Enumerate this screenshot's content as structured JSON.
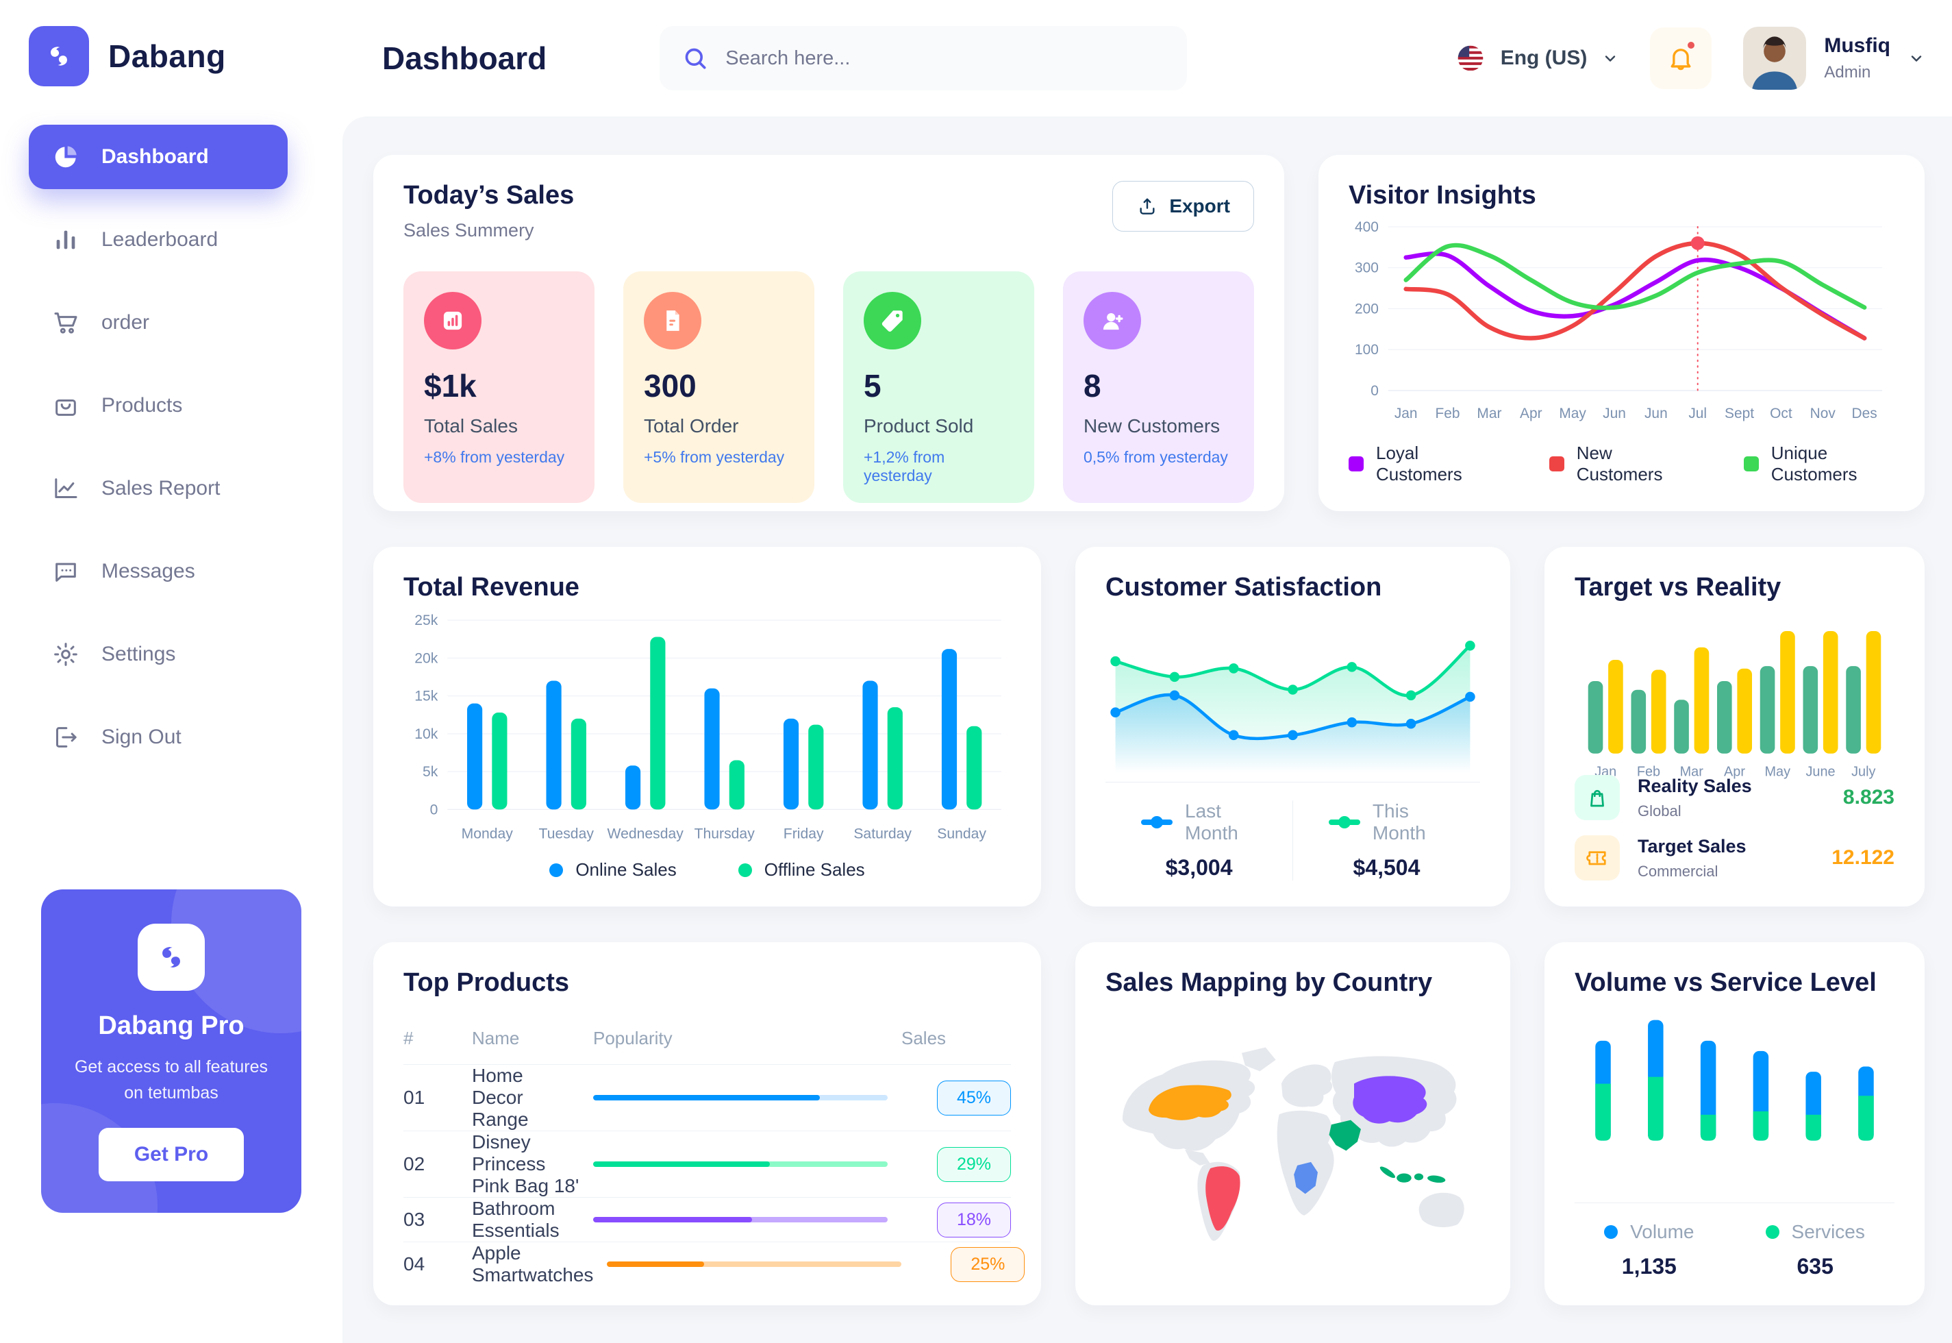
{
  "app": {
    "brand": "Dabang",
    "accent": "#5D5FEF"
  },
  "header": {
    "title": "Dashboard",
    "search_placeholder": "Search here...",
    "language": "Eng (US)",
    "notification_dot": true,
    "user": {
      "name": "Musfiq",
      "role": "Admin"
    }
  },
  "sidebar": {
    "items": [
      {
        "label": "Dashboard",
        "icon": "pie-chart-icon",
        "active": true
      },
      {
        "label": "Leaderboard",
        "icon": "bar-chart-icon",
        "active": false
      },
      {
        "label": "order",
        "icon": "cart-icon",
        "active": false
      },
      {
        "label": "Products",
        "icon": "bag-icon",
        "active": false
      },
      {
        "label": "Sales Report",
        "icon": "line-chart-icon",
        "active": false
      },
      {
        "label": "Messages",
        "icon": "message-icon",
        "active": false
      },
      {
        "label": "Settings",
        "icon": "gear-icon",
        "active": false
      },
      {
        "label": "Sign Out",
        "icon": "sign-out-icon",
        "active": false
      }
    ],
    "pro_card": {
      "title": "Dabang Pro",
      "subtitle": "Get access to all features on tetumbas",
      "button": "Get Pro"
    }
  },
  "todays_sales": {
    "title": "Today’s Sales",
    "subtitle": "Sales Summery",
    "export_label": "Export",
    "cards": [
      {
        "value": "$1k",
        "label": "Total Sales",
        "delta": "+8% from yesterday",
        "bg": "#FFE2E5",
        "circle": "#FA5A7D",
        "icon": "sales-chart-icon"
      },
      {
        "value": "300",
        "label": "Total Order",
        "delta": "+5% from yesterday",
        "bg": "#FFF4DE",
        "circle": "#FF947A",
        "icon": "order-file-icon"
      },
      {
        "value": "5",
        "label": "Product Sold",
        "delta": "+1,2% from yesterday",
        "bg": "#DCFCE7",
        "circle": "#3CD856",
        "icon": "tag-icon"
      },
      {
        "value": "8",
        "label": "New Customers",
        "delta": "0,5% from yesterday",
        "bg": "#F3E8FF",
        "circle": "#BF83FF",
        "icon": "new-customer-icon"
      }
    ]
  },
  "chart_data": [
    {
      "type": "line",
      "title": "Visitor Insights",
      "x": [
        "Jan",
        "Feb",
        "Mar",
        "Apr",
        "May",
        "Jun",
        "Jun",
        "Jul",
        "Sept",
        "Oct",
        "Nov",
        "Des"
      ],
      "ylim": [
        0,
        400
      ],
      "yticks": [
        0,
        100,
        200,
        300,
        400
      ],
      "grid": true,
      "legend_position": "bottom",
      "marker": {
        "x_index": 7,
        "series": "New Customers",
        "color": "#F64E60"
      },
      "series": [
        {
          "name": "Loyal Customers",
          "color": "#A700FF",
          "values": [
            325,
            330,
            255,
            195,
            182,
            210,
            265,
            318,
            300,
            250,
            188,
            128
          ]
        },
        {
          "name": "New Customers",
          "color": "#EF4444",
          "values": [
            248,
            235,
            155,
            128,
            158,
            240,
            328,
            360,
            332,
            252,
            185,
            128
          ]
        },
        {
          "name": "Unique Customers",
          "color": "#3CD856",
          "values": [
            270,
            352,
            330,
            270,
            215,
            203,
            232,
            288,
            310,
            315,
            258,
            203
          ]
        }
      ]
    },
    {
      "type": "bar",
      "title": "Total Revenue",
      "categories": [
        "Monday",
        "Tuesday",
        "Wednesday",
        "Thursday",
        "Friday",
        "Saturday",
        "Sunday"
      ],
      "ylim": [
        0,
        25000
      ],
      "yticks": [
        0,
        5000,
        10000,
        15000,
        20000,
        25000
      ],
      "ytick_labels": [
        "0",
        "5k",
        "10k",
        "15k",
        "20k",
        "25k"
      ],
      "grid": true,
      "legend_position": "bottom",
      "series": [
        {
          "name": "Online Sales",
          "color": "#0095FF",
          "values": [
            14000,
            17000,
            5800,
            16000,
            12000,
            17000,
            21200
          ]
        },
        {
          "name": "Offline Sales",
          "color": "#00E096",
          "values": [
            12800,
            12000,
            22800,
            6500,
            11200,
            13500,
            11000
          ]
        }
      ]
    },
    {
      "type": "area",
      "title": "Customer Satisfaction",
      "x": [
        1,
        2,
        3,
        4,
        5,
        6,
        7
      ],
      "ylim": [
        0,
        110
      ],
      "grid": false,
      "legend_position": "bottom",
      "series": [
        {
          "name": "Last Month",
          "color": "#0095FF",
          "total": "$3,004",
          "values": [
            46,
            58,
            30,
            30,
            39,
            38,
            57
          ]
        },
        {
          "name": "This Month",
          "color": "#00E096",
          "total": "$4,504",
          "values": [
            82,
            71,
            77,
            62,
            78,
            58,
            93
          ]
        }
      ]
    },
    {
      "type": "bar",
      "title": "Target vs Reality",
      "categories": [
        "Jan",
        "Feb",
        "Mar",
        "Apr",
        "May",
        "June",
        "July"
      ],
      "ylim": [
        0,
        110
      ],
      "grid": false,
      "legend_position": "bottom-rows",
      "series": [
        {
          "name": "Reality Sales",
          "subtitle": "Global",
          "color": "#4AB58E",
          "icon": "bag-green-icon",
          "icon_bg": "#E2FFF3",
          "value_label": "8.823",
          "value_color": "#27AE60",
          "values": [
            58,
            51,
            43,
            58,
            70,
            70,
            70
          ]
        },
        {
          "name": "Target Sales",
          "subtitle": "Commercial",
          "color": "#FFCF00",
          "icon": "ticket-orange-icon",
          "icon_bg": "#FFF4DE",
          "value_label": "12.122",
          "value_color": "#FFA412",
          "values": [
            75,
            67,
            85,
            68,
            98,
            98,
            98
          ]
        }
      ]
    },
    {
      "type": "stacked-bar",
      "title": "Volume vs Service Level",
      "categories": [
        "1",
        "2",
        "3",
        "4",
        "5",
        "6"
      ],
      "ylim": [
        0,
        75
      ],
      "grid": false,
      "legend_position": "bottom",
      "series": [
        {
          "name": "Volume",
          "color": "#0095FF",
          "total": "1,135",
          "values": [
            25,
            33,
            43,
            35,
            25,
            17
          ]
        },
        {
          "name": "Services",
          "color": "#00E096",
          "total": "635",
          "values": [
            33,
            37,
            15,
            17,
            15,
            26
          ]
        }
      ]
    }
  ],
  "top_products": {
    "title": "Top Products",
    "headers": [
      "#",
      "Name",
      "Popularity",
      "Sales"
    ],
    "rows": [
      {
        "num": "01",
        "name": "Home Decor Range",
        "popularity_pct": 77,
        "sales": "45%",
        "color": "#0095FF",
        "track": "#CDE7FF"
      },
      {
        "num": "02",
        "name": "Disney Princess Pink Bag 18'",
        "popularity_pct": 60,
        "sales": "29%",
        "color": "#00E096",
        "track": "#8CFAC7"
      },
      {
        "num": "03",
        "name": "Bathroom Essentials",
        "popularity_pct": 54,
        "sales": "18%",
        "color": "#884DFF",
        "track": "#C5A8FF"
      },
      {
        "num": "04",
        "name": "Apple Smartwatches",
        "popularity_pct": 33,
        "sales": "25%",
        "color": "#FF8F0D",
        "track": "#FFD5A4"
      }
    ]
  },
  "sales_map": {
    "title": "Sales Mapping by Country",
    "regions": [
      {
        "region": "usa",
        "color": "#FFA412"
      },
      {
        "region": "brazil",
        "color": "#F64E60"
      },
      {
        "region": "saudi-arabia",
        "color": "#00B074"
      },
      {
        "region": "drc",
        "color": "#5A8DEE"
      },
      {
        "region": "china",
        "color": "#884DFF"
      },
      {
        "region": "indonesia",
        "color": "#00B074"
      }
    ]
  }
}
